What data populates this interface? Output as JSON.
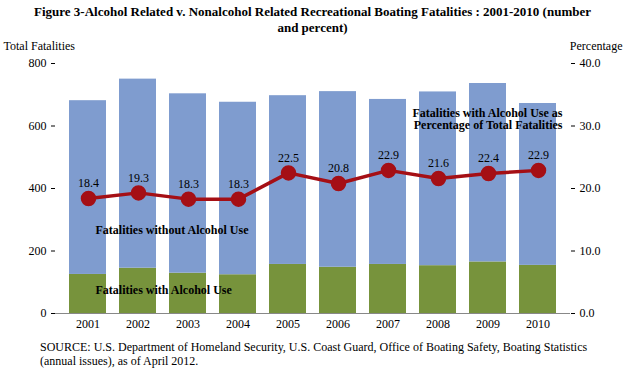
{
  "chart_data": {
    "type": "bar",
    "title": "Figure 3-Alcohol Related v. Nonalcohol Related Recreational Boating Fatalities : 2001-2010 (number and percent)",
    "categories": [
      "2001",
      "2002",
      "2003",
      "2004",
      "2005",
      "2006",
      "2007",
      "2008",
      "2009",
      "2010"
    ],
    "stacked": true,
    "y_label": "Total Fatalities",
    "ylim": [
      0,
      800
    ],
    "yticks": [
      0,
      200,
      400,
      600,
      800
    ],
    "y2_label": "Percentage",
    "y2lim": [
      0,
      40
    ],
    "y2ticks": [
      {
        "value": 0,
        "label": "0.0"
      },
      {
        "value": 10,
        "label": "10.0"
      },
      {
        "value": 20,
        "label": "20.0"
      },
      {
        "value": 30,
        "label": "30.0"
      },
      {
        "value": 40,
        "label": "40.0"
      }
    ],
    "series": [
      {
        "name": "Fatalities with Alcohol Use",
        "color": "#77933c",
        "values": [
          125,
          145,
          129,
          124,
          157,
          148,
          157,
          153,
          165,
          154
        ]
      },
      {
        "name": "Fatalities without Alcohol Use",
        "color": "#7f9ccf",
        "values": [
          556,
          605,
          574,
          552,
          540,
          562,
          528,
          556,
          571,
          518
        ]
      },
      {
        "name": "Fatalities with Alcohol Use as Percentage of Total Fatalities",
        "type": "line",
        "axis": "y2",
        "color": "#a50f15",
        "marker": "circle",
        "data_labels": true,
        "values": [
          18.4,
          19.3,
          18.3,
          18.3,
          22.5,
          20.8,
          22.9,
          21.6,
          22.4,
          22.9
        ]
      }
    ],
    "source": "SOURCE: U.S. Department of Homeland Security, U.S. Coast Guard, Office of Boating Safety, Boating Statistics (annual issues), as of April 2012."
  }
}
